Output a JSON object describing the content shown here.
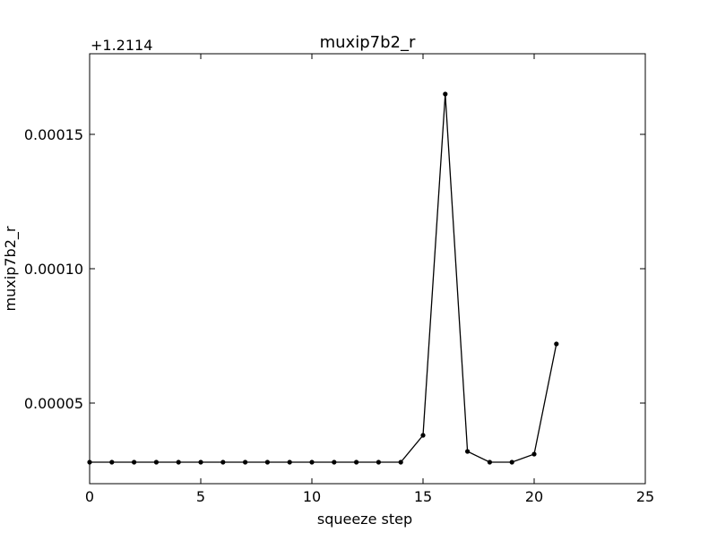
{
  "chart_data": {
    "type": "line",
    "title": "muxip7b2_r",
    "xlabel": "squeeze step",
    "ylabel": "muxip7b2_r",
    "offset_label": "+1.2114",
    "xlim": [
      0,
      25
    ],
    "ylim": [
      2e-05,
      0.00018
    ],
    "xticks": [
      0,
      5,
      10,
      15,
      20,
      25
    ],
    "yticks": [
      5e-05,
      0.0001,
      0.00015
    ],
    "ytick_labels": [
      "0.00005",
      "0.00010",
      "0.00015"
    ],
    "grid": false,
    "series": [
      {
        "color": "#000000",
        "x": [
          0,
          1,
          2,
          3,
          4,
          5,
          6,
          7,
          8,
          9,
          10,
          11,
          12,
          13,
          14,
          15,
          16,
          17,
          18,
          19,
          20,
          21
        ],
        "y": [
          2.8e-05,
          2.8e-05,
          2.8e-05,
          2.8e-05,
          2.8e-05,
          2.8e-05,
          2.8e-05,
          2.8e-05,
          2.8e-05,
          2.8e-05,
          2.8e-05,
          2.8e-05,
          2.8e-05,
          2.8e-05,
          2.8e-05,
          3.8e-05,
          0.000165,
          3.2e-05,
          2.8e-05,
          2.8e-05,
          3.1e-05,
          7.2e-05
        ]
      }
    ]
  }
}
